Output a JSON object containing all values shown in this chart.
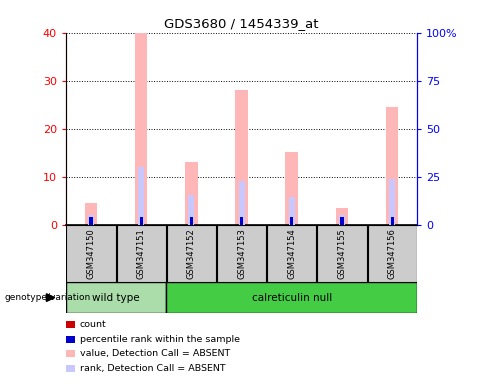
{
  "title": "GDS3680 / 1454339_at",
  "samples": [
    "GSM347150",
    "GSM347151",
    "GSM347152",
    "GSM347153",
    "GSM347154",
    "GSM347155",
    "GSM347156"
  ],
  "absent_value": [
    4.5,
    40.0,
    13.0,
    28.0,
    15.2,
    3.5,
    24.5
  ],
  "absent_rank": [
    2.0,
    12.0,
    6.2,
    9.0,
    5.8,
    2.0,
    9.5
  ],
  "count_value": [
    0.8,
    0.8,
    0.8,
    0.8,
    0.8,
    0.8,
    0.8
  ],
  "percentile_rank": [
    1.5,
    1.5,
    1.5,
    1.5,
    1.5,
    1.5,
    1.5
  ],
  "ylim_left": [
    0,
    40
  ],
  "ylim_right": [
    0,
    100
  ],
  "yticks_left": [
    0,
    10,
    20,
    30,
    40
  ],
  "yticks_right": [
    0,
    25,
    50,
    75,
    100
  ],
  "yticklabels_right": [
    "0",
    "25",
    "50",
    "75",
    "100%"
  ],
  "absent_value_color": "#FFB6B6",
  "absent_rank_color": "#C8C8FF",
  "count_color": "#CC0000",
  "percentile_color": "#0000CC",
  "wild_type_color": "#AADDAA",
  "calreticulin_color": "#44CC44",
  "sample_box_color": "#CCCCCC",
  "legend_items": [
    {
      "label": "count",
      "color": "#CC0000"
    },
    {
      "label": "percentile rank within the sample",
      "color": "#0000CC"
    },
    {
      "label": "value, Detection Call = ABSENT",
      "color": "#FFB6B6"
    },
    {
      "label": "rank, Detection Call = ABSENT",
      "color": "#C8C8FF"
    }
  ]
}
